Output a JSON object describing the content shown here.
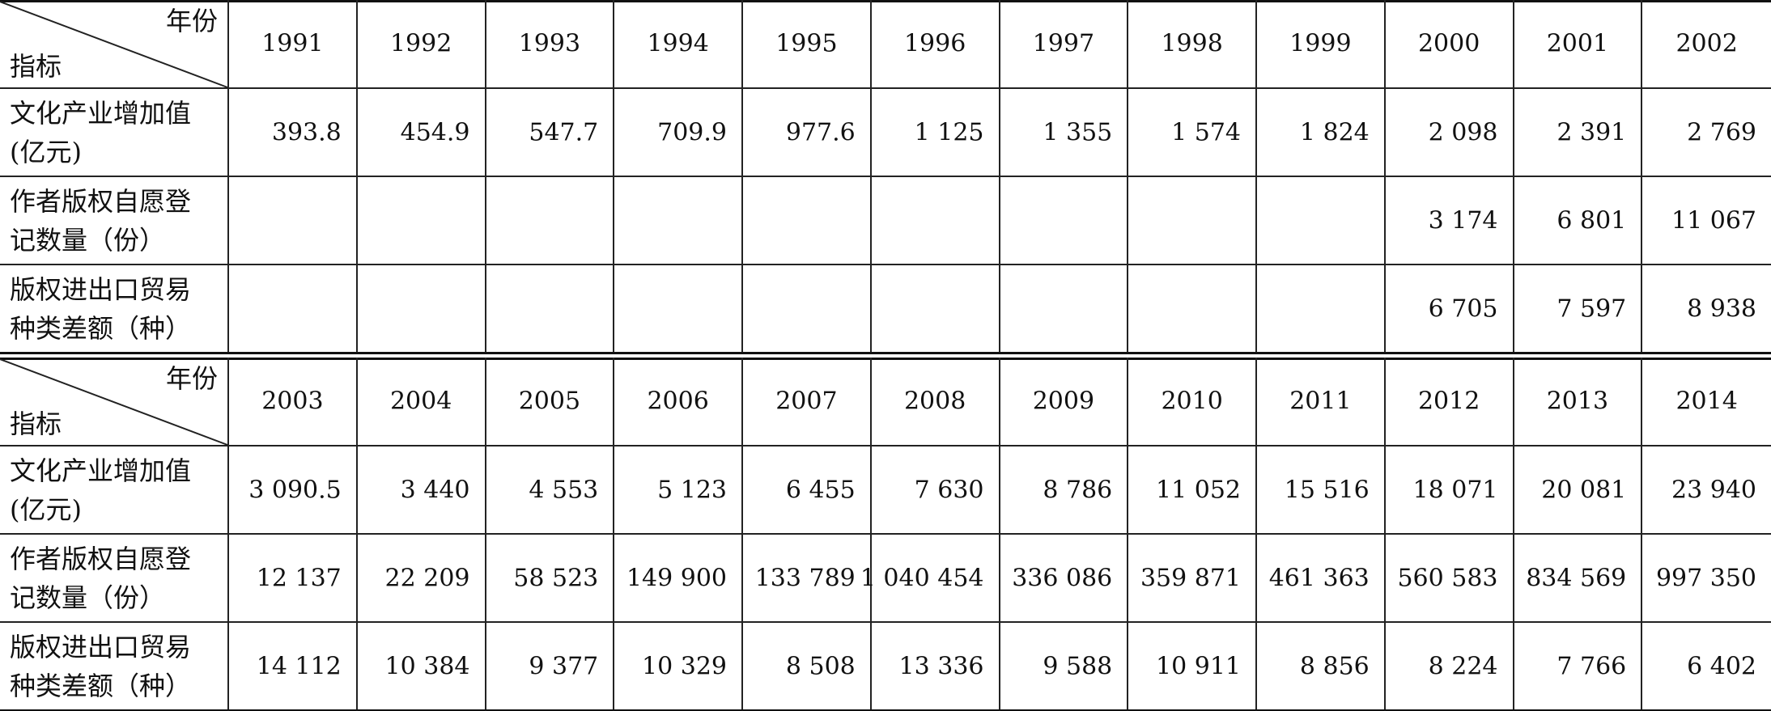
{
  "tables": [
    {
      "header": {
        "corner_top": "年份",
        "corner_bottom": "指标",
        "years": [
          "1991",
          "1992",
          "1993",
          "1994",
          "1995",
          "1996",
          "1997",
          "1998",
          "1999",
          "2000",
          "2001",
          "2002"
        ]
      },
      "rows": [
        {
          "label": [
            "文化产业增加值",
            "(亿元)"
          ],
          "values": [
            "393.8",
            "454.9",
            "547.7",
            "709.9",
            "977.6",
            "1 125",
            "1 355",
            "1 574",
            "1 824",
            "2 098",
            "2 391",
            "2 769"
          ]
        },
        {
          "label": [
            "作者版权自愿登",
            "记数量（份）"
          ],
          "values": [
            null,
            null,
            null,
            null,
            null,
            null,
            null,
            null,
            null,
            "3 174",
            "6 801",
            "11 067"
          ]
        },
        {
          "label": [
            "版权进出口贸易",
            "种类差额（种）"
          ],
          "values": [
            null,
            null,
            null,
            null,
            null,
            null,
            null,
            null,
            null,
            "6 705",
            "7 597",
            "8 938"
          ]
        }
      ]
    },
    {
      "header": {
        "corner_top": "年份",
        "corner_bottom": "指标",
        "years": [
          "2003",
          "2004",
          "2005",
          "2006",
          "2007",
          "2008",
          "2009",
          "2010",
          "2011",
          "2012",
          "2013",
          "2014"
        ]
      },
      "rows": [
        {
          "label": [
            "文化产业增加值",
            "(亿元)"
          ],
          "values": [
            "3 090.5",
            "3 440",
            "4 553",
            "5 123",
            "6 455",
            "7 630",
            "8 786",
            "11 052",
            "15 516",
            "18 071",
            "20 081",
            "23 940"
          ]
        },
        {
          "label": [
            "作者版权自愿登",
            "记数量（份）"
          ],
          "values": [
            "12 137",
            "22 209",
            "58 523",
            "149 900",
            "133 789",
            "1 040 454",
            "336 086",
            "359 871",
            "461 363",
            "560 583",
            "834 569",
            "997 350"
          ]
        },
        {
          "label": [
            "版权进出口贸易",
            "种类差额（种）"
          ],
          "values": [
            "14 112",
            "10 384",
            "9 377",
            "10 329",
            "8 508",
            "13 336",
            "9 588",
            "10 911",
            "8 856",
            "8 224",
            "7 766",
            "6 402"
          ]
        }
      ]
    }
  ]
}
